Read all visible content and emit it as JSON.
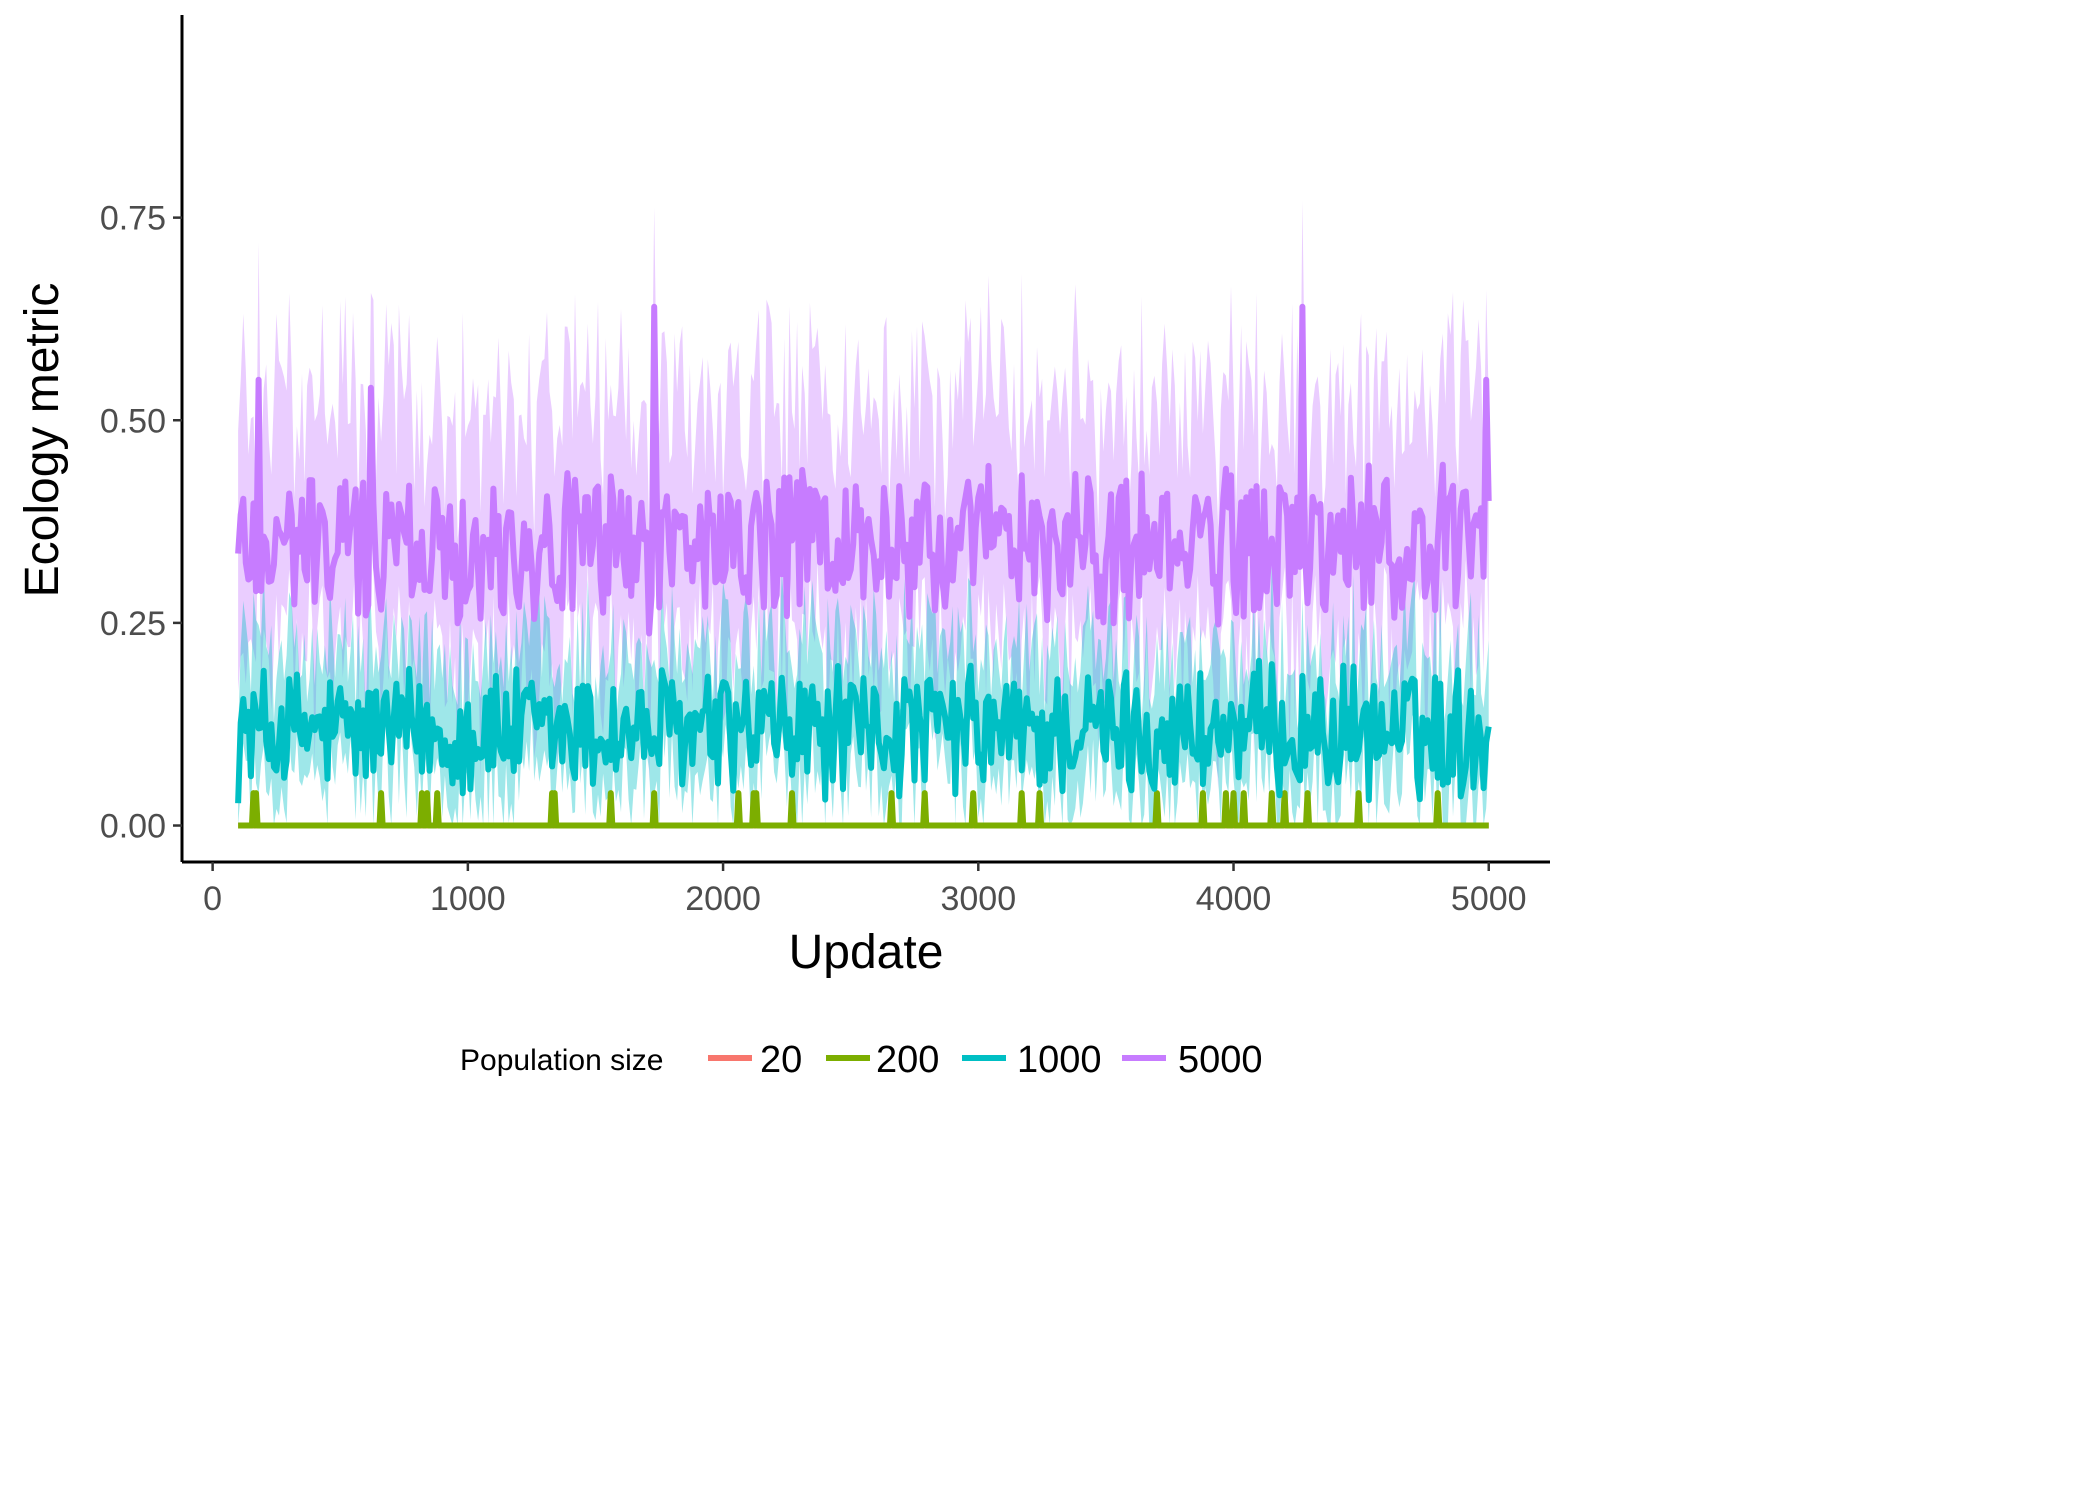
{
  "chart_data": {
    "type": "line",
    "xlabel": "Update",
    "ylabel": "Ecology metric",
    "xlim": [
      -120,
      5240
    ],
    "ylim": [
      -0.045,
      1.0
    ],
    "x_ticks": [
      0,
      1000,
      2000,
      3000,
      4000,
      5000
    ],
    "y_ticks": [
      0.0,
      0.25,
      0.5,
      0.75
    ],
    "x_tick_labels": [
      "0",
      "1000",
      "2000",
      "3000",
      "4000",
      "5000"
    ],
    "y_tick_labels": [
      "0.00",
      "0.25",
      "0.50",
      "0.75"
    ],
    "grid": false,
    "legend": {
      "title": "Population size",
      "position": "bottom",
      "labels": [
        "20",
        "200",
        "1000",
        "5000"
      ]
    },
    "x": {
      "start": 100,
      "end": 5000,
      "step": 10
    },
    "series": [
      {
        "name": "20",
        "color": "#F8766D",
        "mean": 0.0,
        "ci_upper": 0.0,
        "zero_spikes": [],
        "spike_height": 0.0
      },
      {
        "name": "200",
        "color": "#7CAE00",
        "mean": 0.0,
        "ci_upper": 0.0,
        "zero_spikes": [
          160,
          170,
          660,
          820,
          840,
          880,
          1330,
          1340,
          1560,
          1730,
          2060,
          2120,
          2130,
          2270,
          2660,
          2790,
          2980,
          3170,
          3240,
          3700,
          3880,
          3970,
          4000,
          4040,
          4150,
          4200,
          4290,
          4490,
          4800
        ],
        "spike_height": 0.04
      },
      {
        "name": "1000",
        "color": "#00BFC4",
        "mean": 0.115,
        "amp": 0.07,
        "ci_upper_offset": 0.09
      },
      {
        "name": "5000",
        "color": "#C77CFF",
        "mean": 0.345,
        "amp": 0.085,
        "ci_upper_offset": 0.17,
        "peaks": [
          {
            "x": 1730,
            "y": 0.64
          },
          {
            "x": 4270,
            "y": 0.64
          },
          {
            "x": 4990,
            "y": 0.55
          },
          {
            "x": 620,
            "y": 0.54
          },
          {
            "x": 180,
            "y": 0.55
          }
        ]
      }
    ]
  }
}
